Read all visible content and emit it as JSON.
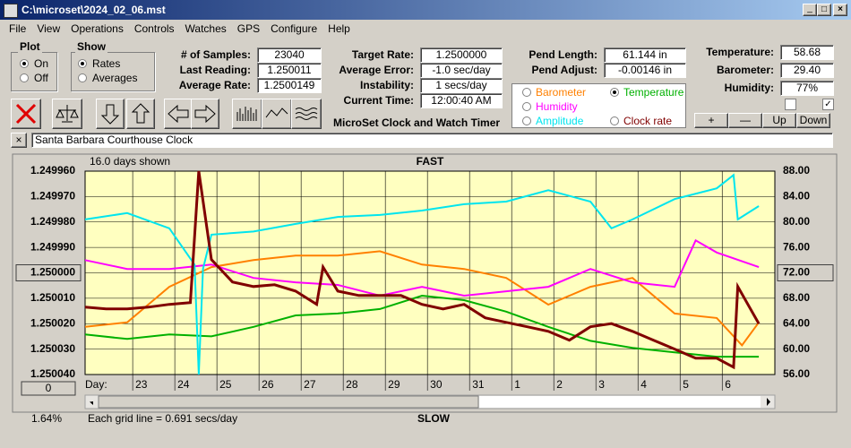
{
  "window": {
    "title": "C:\\microset\\2024_02_06.mst"
  },
  "menu": [
    "File",
    "View",
    "Operations",
    "Controls",
    "Watches",
    "GPS",
    "Configure",
    "Help"
  ],
  "plot_group": {
    "label": "Plot",
    "options": [
      "On",
      "Off"
    ]
  },
  "show_group": {
    "label": "Show",
    "options": [
      "Rates",
      "Averages"
    ]
  },
  "samples_panel": [
    {
      "label": "# of Samples:",
      "value": "23040"
    },
    {
      "label": "Last Reading:",
      "value": "1.250011"
    },
    {
      "label": "Average Rate:",
      "value": "1.2500149"
    }
  ],
  "rate_panel": [
    {
      "label": "Target Rate:",
      "value": "1.2500000"
    },
    {
      "label": "Average Error:",
      "value": "-1.0 sec/day"
    },
    {
      "label": "Instability:",
      "value": "1 secs/day"
    },
    {
      "label": "Current Time:",
      "value": "12:00:40 AM"
    }
  ],
  "pend_panel": [
    {
      "label": "Pend Length:",
      "value": "61.144 in"
    },
    {
      "label": "Pend Adjust:",
      "value": "-0.00146 in"
    }
  ],
  "env_panel": [
    {
      "label": "Temperature:",
      "value": "58.68"
    },
    {
      "label": "Barometer:",
      "value": "29.40"
    },
    {
      "label": "Humidity:",
      "value": "77%"
    }
  ],
  "app_title": "MicroSet Clock and Watch Timer",
  "buttons": [
    "+",
    "—",
    "Up",
    "Down"
  ],
  "clock_name": "Santa Barbara Courthouse Clock",
  "chart_data": {
    "type": "line",
    "top_label": "FAST",
    "bottom_label": "SLOW",
    "days_shown": "16.0 days shown",
    "x_label": "Day:",
    "grid_note": "Each grid line = 0.691 secs/day",
    "percent": "1.64%",
    "offset_button": "0",
    "grid": true,
    "xlim": [
      0,
      16.38
    ],
    "xticks": [
      {
        "value": 1.13,
        "label": "23"
      },
      {
        "value": 2.13,
        "label": "24"
      },
      {
        "value": 3.13,
        "label": "25"
      },
      {
        "value": 4.13,
        "label": "26"
      },
      {
        "value": 5.13,
        "label": "27"
      },
      {
        "value": 6.13,
        "label": "28"
      },
      {
        "value": 7.13,
        "label": "29"
      },
      {
        "value": 8.13,
        "label": "30"
      },
      {
        "value": 9.13,
        "label": "31"
      },
      {
        "value": 10.13,
        "label": "1"
      },
      {
        "value": 11.13,
        "label": "2"
      },
      {
        "value": 12.13,
        "label": "3"
      },
      {
        "value": 13.13,
        "label": "4"
      },
      {
        "value": 14.13,
        "label": "5"
      },
      {
        "value": 15.13,
        "label": "6"
      }
    ],
    "ylim": [
      1.25004,
      1.24996
    ],
    "yticks": [
      {
        "value": 1.24996,
        "label": "1.249960"
      },
      {
        "value": 1.24997,
        "label": "1.249970"
      },
      {
        "value": 1.24998,
        "label": "1.249980"
      },
      {
        "value": 1.24999,
        "label": "1.249990"
      },
      {
        "value": 1.25,
        "label": "1.250000"
      },
      {
        "value": 1.25001,
        "label": "1.250010"
      },
      {
        "value": 1.25002,
        "label": "1.250020"
      },
      {
        "value": 1.25003,
        "label": "1.250030"
      },
      {
        "value": 1.25004,
        "label": "1.250040"
      }
    ],
    "y2lim": [
      56,
      88
    ],
    "y2ticks": [
      {
        "value": 88,
        "label": "88.00"
      },
      {
        "value": 84,
        "label": "84.00"
      },
      {
        "value": 80,
        "label": "80.00"
      },
      {
        "value": 76,
        "label": "76.00"
      },
      {
        "value": 72,
        "label": "72.00"
      },
      {
        "value": 68,
        "label": "68.00"
      },
      {
        "value": 64,
        "label": "64.00"
      },
      {
        "value": 60,
        "label": "60.00"
      },
      {
        "value": 56,
        "label": "56.00"
      }
    ],
    "series": [
      {
        "name": "Barometer",
        "color": "#ff8000",
        "axis": "y2",
        "x": [
          0,
          1,
          2,
          3,
          4,
          5,
          6,
          7,
          8,
          9,
          10,
          11,
          12,
          13,
          14,
          15,
          15.6,
          16
        ],
        "values": [
          63.5,
          64.2,
          69.8,
          72.9,
          74,
          74.7,
          74.7,
          75.4,
          73.3,
          72.6,
          71.2,
          67,
          69.8,
          71.2,
          65.6,
          64.9,
          60.6,
          64.2
        ]
      },
      {
        "name": "Temperature",
        "color": "#00b000",
        "axis": "y2",
        "x": [
          0,
          1,
          2,
          3,
          4,
          5,
          6,
          7,
          8,
          9,
          10,
          11,
          12,
          13,
          14,
          15,
          16
        ],
        "values": [
          62.3,
          61.6,
          62.3,
          62,
          63.5,
          65.3,
          65.6,
          66.3,
          68.4,
          67.7,
          65.9,
          63.5,
          61.3,
          60.2,
          59.5,
          58.8,
          58.8
        ]
      },
      {
        "name": "Humidity",
        "color": "#ff00ff",
        "axis": "y2",
        "x": [
          0,
          1,
          2,
          3,
          4,
          5,
          6,
          7,
          8,
          9,
          10,
          11,
          12,
          13,
          14,
          14.5,
          15,
          16
        ],
        "values": [
          74,
          72.6,
          72.6,
          73.3,
          71.2,
          70.5,
          70.1,
          68.4,
          69.8,
          68.4,
          69.1,
          69.8,
          72.6,
          70.5,
          69.8,
          77.1,
          75.2,
          72.9
        ]
      },
      {
        "name": "Amplitude",
        "color": "#00e5ee",
        "axis": "y2",
        "x": [
          0,
          1,
          2,
          2.6,
          2.7,
          2.8,
          3,
          4,
          5,
          6,
          7,
          8,
          9,
          10,
          11,
          12,
          12.5,
          13,
          14,
          15,
          15.4,
          15.5,
          16
        ],
        "values": [
          80.4,
          81.4,
          79,
          73.3,
          56,
          72.6,
          78,
          78.5,
          79.7,
          80.8,
          81.1,
          81.8,
          82.8,
          83.2,
          85,
          83.2,
          79,
          80.4,
          83.6,
          85.3,
          87.4,
          80.4,
          82.5
        ]
      },
      {
        "name": "Clock rate",
        "color": "#800000",
        "axis": "y",
        "x": [
          0,
          0.5,
          1,
          1.5,
          2,
          2.5,
          2.7,
          3,
          3.5,
          4,
          4.5,
          5,
          5.5,
          5.65,
          6,
          6.5,
          7,
          7.5,
          8,
          8.5,
          9,
          9.5,
          10,
          10.5,
          11,
          11.5,
          12,
          12.5,
          13,
          13.5,
          14,
          14.5,
          15,
          15.4,
          15.5,
          16
        ],
        "values": [
          1.2500135,
          1.2500142,
          1.2500142,
          1.2500135,
          1.2500124,
          1.2500117,
          1.24996,
          1.2499948,
          1.2500036,
          1.2500054,
          1.2500047,
          1.2500072,
          1.2500124,
          1.2499977,
          1.2500072,
          1.2500089,
          1.2500089,
          1.2500089,
          1.2500124,
          1.2500142,
          1.2500124,
          1.2500177,
          1.2500195,
          1.2500212,
          1.250023,
          1.2500265,
          1.2500212,
          1.25002,
          1.250023,
          1.2500265,
          1.25003,
          1.2500336,
          1.2500336,
          1.2500371,
          1.2500054,
          1.25002
        ]
      }
    ]
  }
}
